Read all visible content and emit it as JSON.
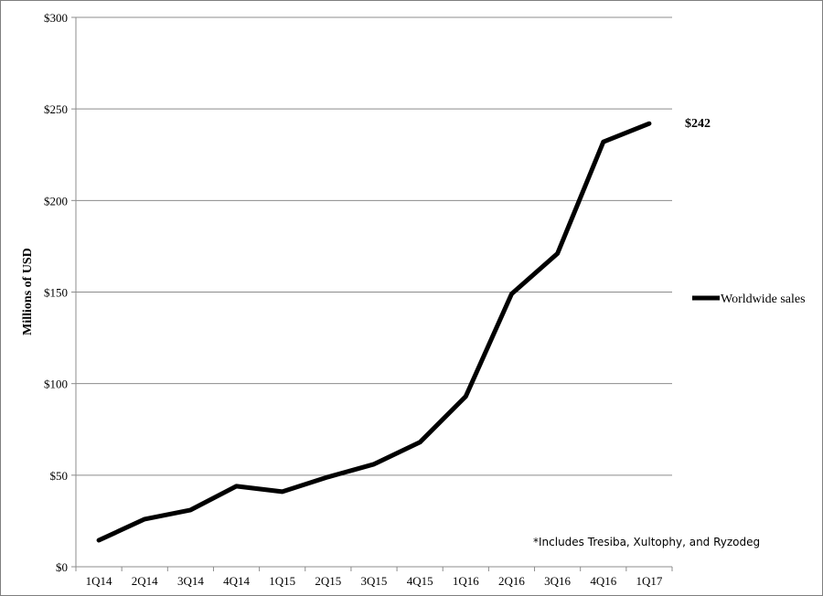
{
  "chart_data": {
    "type": "line",
    "categories": [
      "1Q14",
      "2Q14",
      "3Q14",
      "4Q14",
      "1Q15",
      "2Q15",
      "3Q15",
      "4Q15",
      "1Q16",
      "2Q16",
      "3Q16",
      "4Q16",
      "1Q17"
    ],
    "series": [
      {
        "name": "Worldwide sales",
        "values": [
          14.5,
          26,
          31,
          44,
          41,
          49,
          56,
          68,
          93,
          149,
          171,
          232,
          242
        ],
        "color": "#000000"
      }
    ],
    "ylabel": "Millions of USD",
    "xlabel": "",
    "ylim": [
      0,
      300
    ],
    "yticks": [
      0,
      50,
      100,
      150,
      200,
      250,
      300
    ],
    "ytick_labels": [
      "$0",
      "$50",
      "$100",
      "$150",
      "$200",
      "$250",
      "$300"
    ],
    "grid": true,
    "legend_position": "right",
    "end_label": "$242",
    "footnote": "*Includes Tresiba, Xultophy, and Ryzodeg"
  }
}
